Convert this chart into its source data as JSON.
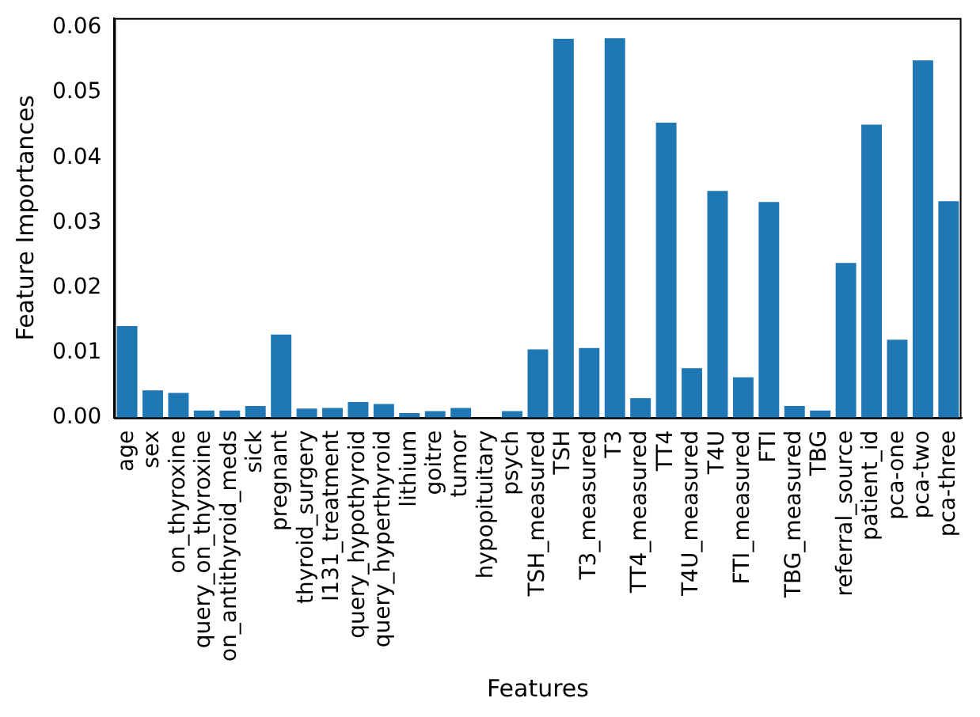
{
  "chart_data": {
    "type": "bar",
    "xlabel": "Features",
    "ylabel": "Feature Importances",
    "categories": [
      "age",
      "sex",
      "on_thyroxine",
      "query_on_thyroxine",
      "on_antithyroid_meds",
      "sick",
      "pregnant",
      "thyroid_surgery",
      "I131_treatment",
      "query_hypothyroid",
      "query_hyperthyroid",
      "lithium",
      "goitre",
      "tumor",
      "hypopituitary",
      "psych",
      "TSH_measured",
      "TSH",
      "T3_measured",
      "T3",
      "TT4_measured",
      "TT4",
      "T4U_measured",
      "T4U",
      "FTI_measured",
      "FTI",
      "TBG_measured",
      "TBG",
      "referral_source",
      "patient_id",
      "pca-one",
      "pca-two",
      "pca-three"
    ],
    "values": [
      0.0141,
      0.0042,
      0.0038,
      0.0011,
      0.0011,
      0.0018,
      0.0128,
      0.0014,
      0.0015,
      0.0024,
      0.0021,
      0.0007,
      0.001,
      0.0015,
      0,
      0.001,
      0.0105,
      0.0583,
      0.0107,
      0.0584,
      0.003,
      0.0454,
      0.0076,
      0.0349,
      0.0062,
      0.0332,
      0.0018,
      0.0011,
      0.0238,
      0.0451,
      0.012,
      0.055,
      0.0333
    ],
    "color": "#1f77b4",
    "ylim": [
      0,
      0.0615
    ],
    "yticks": [
      {
        "value": 0,
        "label": "0.00"
      },
      {
        "value": 0.01,
        "label": "0.01"
      },
      {
        "value": 0.02,
        "label": "0.02"
      },
      {
        "value": 0.03,
        "label": "0.03"
      },
      {
        "value": 0.04,
        "label": "0.04"
      },
      {
        "value": 0.05,
        "label": "0.05"
      },
      {
        "value": 0.06,
        "label": "0.06"
      }
    ],
    "grid": false,
    "legend": false
  }
}
